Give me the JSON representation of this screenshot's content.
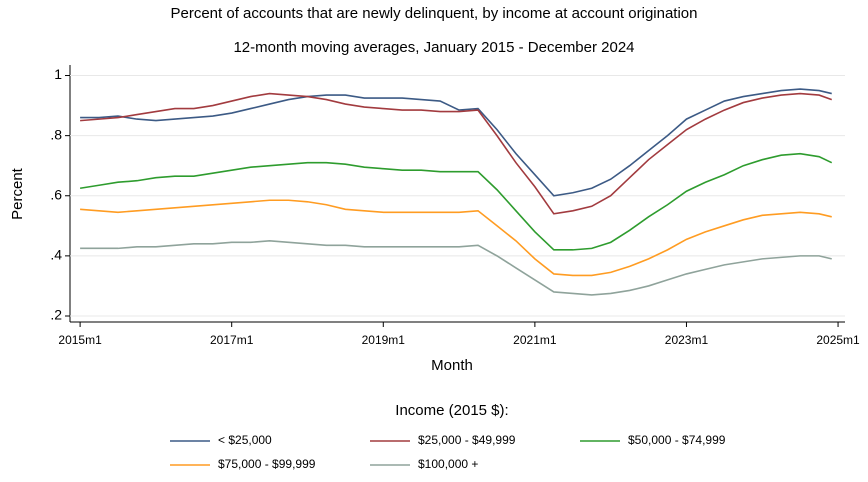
{
  "chart_data": {
    "type": "line",
    "title": "Percent of accounts that are newly delinquent, by income at account origination",
    "subtitle": "12-month moving averages, January 2015 - December 2024",
    "x_label": "Month",
    "y_label": "Percent",
    "legend_title": "Income (2015 $):",
    "grid": true,
    "x": [
      660,
      663,
      666,
      669,
      672,
      675,
      678,
      681,
      684,
      687,
      690,
      693,
      696,
      699,
      702,
      705,
      708,
      711,
      714,
      717,
      720,
      723,
      726,
      729,
      732,
      735,
      738,
      741,
      744,
      747,
      750,
      753,
      756,
      759,
      762,
      765,
      768,
      771,
      774,
      777,
      779
    ],
    "xlim": [
      658.4,
      781.1
    ],
    "xticks": [
      {
        "value": 660,
        "label": "2015m1"
      },
      {
        "value": 684,
        "label": "2017m1"
      },
      {
        "value": 708,
        "label": "2019m1"
      },
      {
        "value": 732,
        "label": "2021m1"
      },
      {
        "value": 756,
        "label": "2023m1"
      },
      {
        "value": 780,
        "label": "2025m1"
      }
    ],
    "ylim": [
      0.18,
      1.035
    ],
    "yticks": [
      {
        "value": 0.2,
        "label": ".2"
      },
      {
        "value": 0.4,
        "label": ".4"
      },
      {
        "value": 0.6,
        "label": ".6"
      },
      {
        "value": 0.8,
        "label": ".8"
      },
      1
    ],
    "series": [
      {
        "name": "< $25,000",
        "color": "#3c5a85",
        "values": [
          0.86,
          0.86,
          0.865,
          0.855,
          0.85,
          0.855,
          0.86,
          0.865,
          0.875,
          0.89,
          0.905,
          0.92,
          0.93,
          0.935,
          0.935,
          0.925,
          0.925,
          0.925,
          0.92,
          0.915,
          0.885,
          0.89,
          0.82,
          0.74,
          0.67,
          0.6,
          0.61,
          0.625,
          0.655,
          0.7,
          0.75,
          0.8,
          0.855,
          0.885,
          0.915,
          0.93,
          0.94,
          0.95,
          0.955,
          0.95,
          0.94
        ]
      },
      {
        "name": "$25,000 - $49,999",
        "color": "#a23b3f",
        "values": [
          0.85,
          0.855,
          0.86,
          0.87,
          0.88,
          0.89,
          0.89,
          0.9,
          0.915,
          0.93,
          0.94,
          0.935,
          0.93,
          0.92,
          0.905,
          0.895,
          0.89,
          0.885,
          0.885,
          0.88,
          0.88,
          0.885,
          0.8,
          0.71,
          0.63,
          0.54,
          0.55,
          0.565,
          0.6,
          0.66,
          0.72,
          0.77,
          0.82,
          0.855,
          0.885,
          0.91,
          0.925,
          0.935,
          0.94,
          0.935,
          0.92
        ]
      },
      {
        "name": "$50,000 - $74,999",
        "color": "#2e9c2e",
        "values": [
          0.625,
          0.635,
          0.645,
          0.65,
          0.66,
          0.665,
          0.665,
          0.675,
          0.685,
          0.695,
          0.7,
          0.705,
          0.71,
          0.71,
          0.705,
          0.695,
          0.69,
          0.685,
          0.685,
          0.68,
          0.68,
          0.68,
          0.62,
          0.55,
          0.48,
          0.42,
          0.42,
          0.425,
          0.445,
          0.485,
          0.53,
          0.57,
          0.615,
          0.645,
          0.67,
          0.7,
          0.72,
          0.735,
          0.74,
          0.73,
          0.71
        ]
      },
      {
        "name": "$75,000 - $99,999",
        "color": "#ff9c22",
        "values": [
          0.555,
          0.55,
          0.545,
          0.55,
          0.555,
          0.56,
          0.565,
          0.57,
          0.575,
          0.58,
          0.585,
          0.585,
          0.58,
          0.57,
          0.555,
          0.55,
          0.545,
          0.545,
          0.545,
          0.545,
          0.545,
          0.55,
          0.5,
          0.45,
          0.39,
          0.34,
          0.335,
          0.335,
          0.345,
          0.365,
          0.39,
          0.42,
          0.455,
          0.48,
          0.5,
          0.52,
          0.535,
          0.54,
          0.545,
          0.54,
          0.53
        ]
      },
      {
        "name": "$100,000 +",
        "color": "#8fa39b",
        "values": [
          0.425,
          0.425,
          0.425,
          0.43,
          0.43,
          0.435,
          0.44,
          0.44,
          0.445,
          0.445,
          0.45,
          0.445,
          0.44,
          0.435,
          0.435,
          0.43,
          0.43,
          0.43,
          0.43,
          0.43,
          0.43,
          0.435,
          0.4,
          0.36,
          0.32,
          0.28,
          0.275,
          0.27,
          0.275,
          0.285,
          0.3,
          0.32,
          0.34,
          0.355,
          0.37,
          0.38,
          0.39,
          0.395,
          0.4,
          0.4,
          0.39
        ]
      }
    ]
  }
}
